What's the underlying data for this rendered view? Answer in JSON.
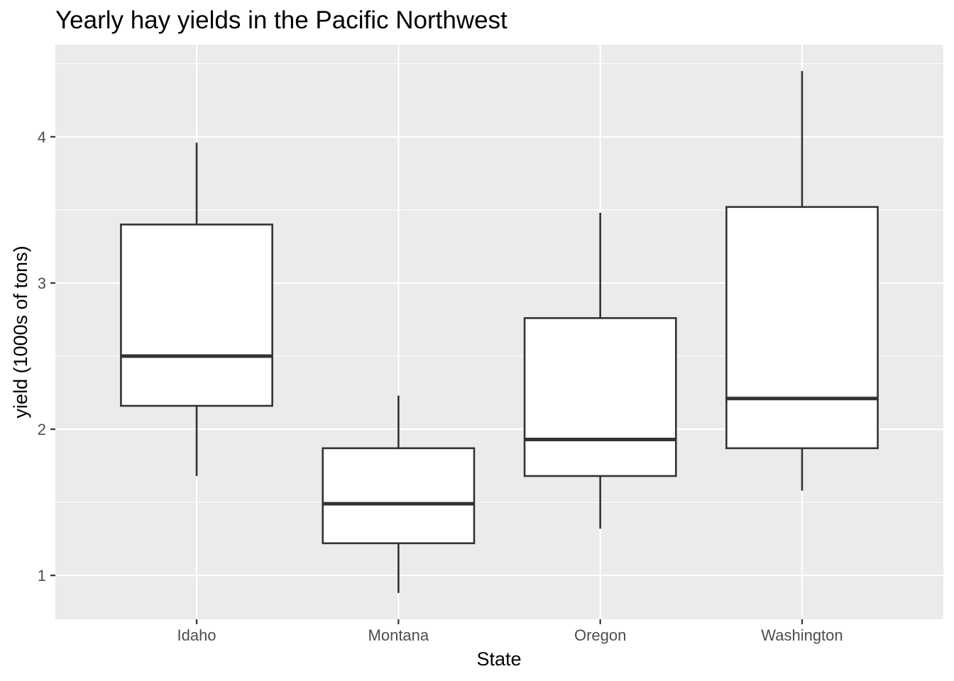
{
  "chart_data": {
    "type": "boxplot",
    "title": "Yearly hay yields in the Pacific Northwest",
    "xlabel": "State",
    "ylabel": "yield (1000s of tons)",
    "categories": [
      "Idaho",
      "Montana",
      "Oregon",
      "Washington"
    ],
    "boxes": [
      {
        "category": "Idaho",
        "whisker_low": 1.68,
        "q1": 2.16,
        "median": 2.5,
        "q3": 3.4,
        "whisker_high": 3.96
      },
      {
        "category": "Montana",
        "whisker_low": 0.88,
        "q1": 1.22,
        "median": 1.49,
        "q3": 1.87,
        "whisker_high": 2.23
      },
      {
        "category": "Oregon",
        "whisker_low": 1.32,
        "q1": 1.68,
        "median": 1.93,
        "q3": 2.76,
        "whisker_high": 3.48
      },
      {
        "category": "Washington",
        "whisker_low": 1.58,
        "q1": 1.87,
        "median": 2.21,
        "q3": 3.52,
        "whisker_high": 4.45
      }
    ],
    "ylim": [
      0.7,
      4.63
    ],
    "yticks": [
      1,
      2,
      3,
      4
    ],
    "grid": true,
    "colors": {
      "panel": "#ebebeb",
      "grid": "#ffffff",
      "box_fill": "#ffffff",
      "box_stroke": "#333333",
      "tick_text": "#4d4d4d"
    }
  }
}
